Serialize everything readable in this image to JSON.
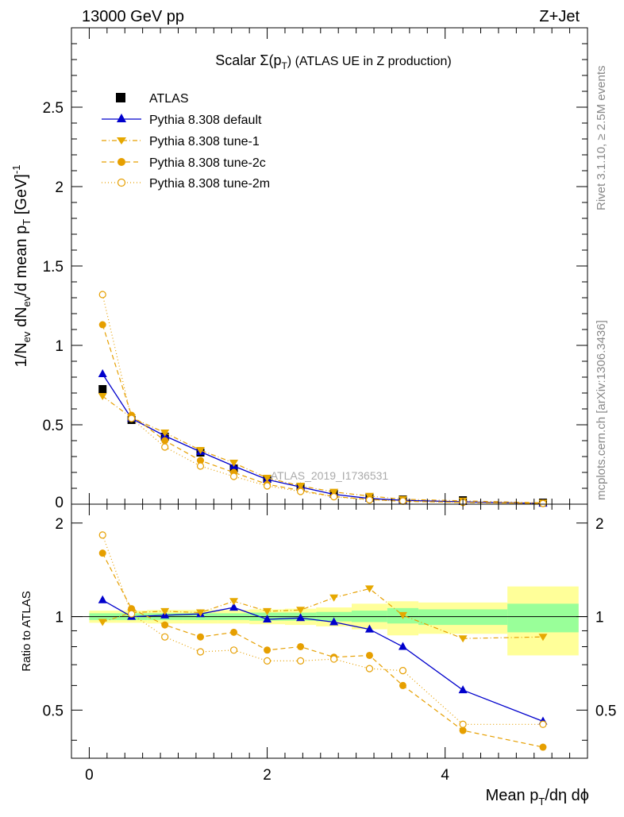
{
  "header": {
    "left": "13000 GeV pp",
    "right": "Z+Jet"
  },
  "side_labels": {
    "rivet": "Rivet 3.1.10, ≥ 2.5M events",
    "mcplots": "mcplots.cern.ch [arXiv:1306.3436]"
  },
  "colors": {
    "atlas": "#000000",
    "default": "#0000cc",
    "tune": "#e69f00",
    "band_inner": "#99ff99",
    "band_outer": "#ffff99"
  },
  "chart_data": [
    {
      "type": "scatter",
      "title": "Scalar Σ(p_T) (ATLAS UE in Z production)",
      "title_parts": {
        "prefix": "Scalar Σ(p",
        "sub": "T",
        "suffix": ") (ATLAS UE in Z production)"
      },
      "ylabel": "1/N_ev dN_ev/d mean p_T [GeV]^-1",
      "watermark": "ATLAS_2019_I1736531",
      "xlim": [
        -0.2,
        5.6
      ],
      "ylim": [
        0,
        3.0
      ],
      "yticks": [
        0.5,
        1,
        1.5,
        2,
        2.5
      ],
      "ytick_labels": [
        "0.5",
        "1",
        "1.5",
        "2",
        "2.5"
      ],
      "y_bottom_label": "0",
      "legend_position": "top-left",
      "x": [
        0.15,
        0.475,
        0.85,
        1.25,
        1.625,
        2.0,
        2.375,
        2.75,
        3.15,
        3.525,
        4.2,
        5.1
      ],
      "xerr": [
        0.1,
        0.15,
        0.2,
        0.2,
        0.175,
        0.2,
        0.175,
        0.2,
        0.2,
        0.2,
        0.5,
        0.4
      ],
      "series": [
        {
          "name": "ATLAS",
          "style": "atlas",
          "values": [
            0.725,
            0.53,
            0.425,
            0.325,
            0.225,
            0.16,
            0.11,
            0.065,
            0.04,
            0.03,
            0.025,
            0.01
          ]
        },
        {
          "name": "Pythia 8.308 default",
          "style": "default",
          "values": [
            0.82,
            0.54,
            0.43,
            0.33,
            0.24,
            0.155,
            0.108,
            0.062,
            0.036,
            0.024,
            0.015,
            0.0046
          ]
        },
        {
          "name": "Pythia 8.308 tune-1",
          "style": "tune1",
          "values": [
            0.68,
            0.545,
            0.45,
            0.34,
            0.26,
            0.165,
            0.115,
            0.077,
            0.051,
            0.031,
            0.021,
            0.0087
          ]
        },
        {
          "name": "Pythia 8.308 tune-2c",
          "style": "tune2c",
          "values": [
            1.13,
            0.56,
            0.4,
            0.275,
            0.2,
            0.125,
            0.087,
            0.048,
            0.03,
            0.018,
            0.0108,
            0.0038
          ]
        },
        {
          "name": "Pythia 8.308 tune-2m",
          "style": "tune2m",
          "values": [
            1.32,
            0.54,
            0.36,
            0.24,
            0.175,
            0.115,
            0.08,
            0.047,
            0.027,
            0.02,
            0.0113,
            0.0045
          ]
        }
      ]
    },
    {
      "type": "scatter",
      "ylabel": "Ratio to ATLAS",
      "xlabel": "Mean p_T/dη dϕ",
      "xlabel_parts": {
        "prefix": "Mean p",
        "sub": "T",
        "suffix": "/dη dϕ"
      },
      "ylim": [
        0.35,
        2.3
      ],
      "yticks": [
        0.5,
        1,
        2
      ],
      "ytick_labels": [
        "0.5",
        "1",
        "2"
      ],
      "xticks": [
        0,
        2,
        4
      ],
      "xtick_labels": [
        "0",
        "2",
        "4"
      ],
      "reference_line": 1,
      "bands": {
        "x_edges": [
          0.0,
          0.3,
          0.65,
          1.05,
          1.45,
          1.8,
          2.2,
          2.55,
          2.95,
          3.35,
          3.7,
          4.7,
          5.5
        ],
        "inner": [
          [
            0.975,
            1.025
          ],
          [
            0.975,
            1.025
          ],
          [
            0.975,
            1.025
          ],
          [
            0.975,
            1.025
          ],
          [
            0.975,
            1.025
          ],
          [
            0.97,
            1.03
          ],
          [
            0.97,
            1.03
          ],
          [
            0.965,
            1.035
          ],
          [
            0.96,
            1.045
          ],
          [
            0.95,
            1.065
          ],
          [
            0.94,
            1.055
          ],
          [
            0.89,
            1.1
          ]
        ],
        "outer": [
          [
            0.955,
            1.045
          ],
          [
            0.955,
            1.045
          ],
          [
            0.95,
            1.05
          ],
          [
            0.95,
            1.05
          ],
          [
            0.95,
            1.05
          ],
          [
            0.945,
            1.055
          ],
          [
            0.94,
            1.06
          ],
          [
            0.93,
            1.07
          ],
          [
            0.91,
            1.1
          ],
          [
            0.87,
            1.12
          ],
          [
            0.88,
            1.11
          ],
          [
            0.75,
            1.25
          ]
        ]
      },
      "x": [
        0.15,
        0.475,
        0.85,
        1.25,
        1.625,
        2.0,
        2.375,
        2.75,
        3.15,
        3.525,
        4.2,
        5.1
      ],
      "series": [
        {
          "name": "Pythia 8.308 default",
          "style": "default",
          "values": [
            1.13,
            1.0,
            1.01,
            1.02,
            1.07,
            0.98,
            0.99,
            0.96,
            0.91,
            0.8,
            0.58,
            0.46
          ]
        },
        {
          "name": "Pythia 8.308 tune-1",
          "style": "tune1",
          "values": [
            0.96,
            1.03,
            1.04,
            1.03,
            1.12,
            1.04,
            1.05,
            1.15,
            1.23,
            1.01,
            0.85,
            0.86
          ]
        },
        {
          "name": "Pythia 8.308 tune-2c",
          "style": "tune2c",
          "values": [
            1.6,
            1.06,
            0.94,
            0.86,
            0.89,
            0.78,
            0.8,
            0.74,
            0.75,
            0.6,
            0.43,
            0.38
          ]
        },
        {
          "name": "Pythia 8.308 tune-2m",
          "style": "tune2m",
          "values": [
            1.83,
            1.02,
            0.86,
            0.77,
            0.78,
            0.72,
            0.72,
            0.73,
            0.68,
            0.67,
            0.45,
            0.45
          ]
        }
      ]
    }
  ]
}
